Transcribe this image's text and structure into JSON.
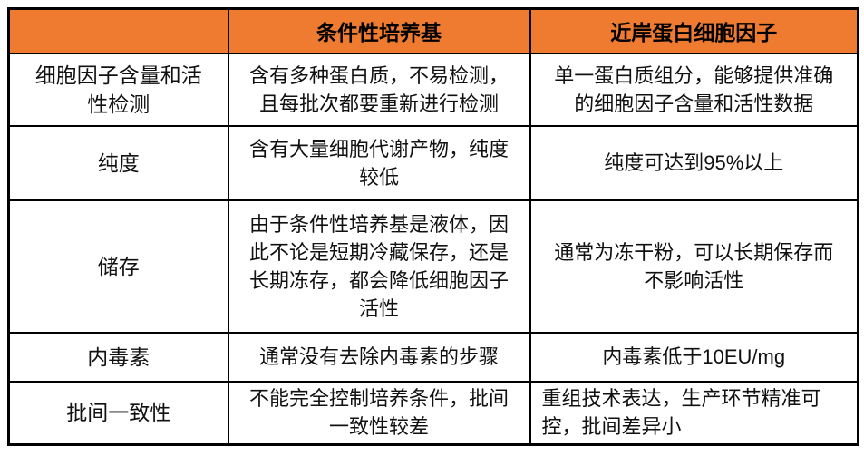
{
  "colors": {
    "header_bg": "#EF7B30",
    "border": "#000000",
    "text": "#111111"
  },
  "table": {
    "header": {
      "corner": "",
      "conditional_medium": "条件性培养基",
      "novoprotein_cytokines": "近岸蛋白细胞因子"
    },
    "rows": [
      {
        "label": "细胞因子含量和活性检测",
        "conditional_medium": "含有多种蛋白质，不易检测，且每批次都要重新进行检测",
        "novoprotein": "单一蛋白质组分，能够提供准确的细胞因子含量和活性数据"
      },
      {
        "label": "纯度",
        "conditional_medium": "含有大量细胞代谢产物，纯度较低",
        "novoprotein": "纯度可达到95%以上"
      },
      {
        "label": "储存",
        "conditional_medium": "由于条件性培养基是液体，因此不论是短期冷藏保存，还是长期冻存，都会降低细胞因子活性",
        "novoprotein": "通常为冻干粉，可以长期保存而不影响活性"
      },
      {
        "label": "内毒素",
        "conditional_medium": "通常没有去除内毒素的步骤",
        "novoprotein": "内毒素低于10EU/mg"
      },
      {
        "label": "批间一致性",
        "conditional_medium": "不能完全控制培养条件，批间一致性较差",
        "novoprotein": "重组技术表达，生产环节精准可控，批间差异小"
      }
    ]
  }
}
